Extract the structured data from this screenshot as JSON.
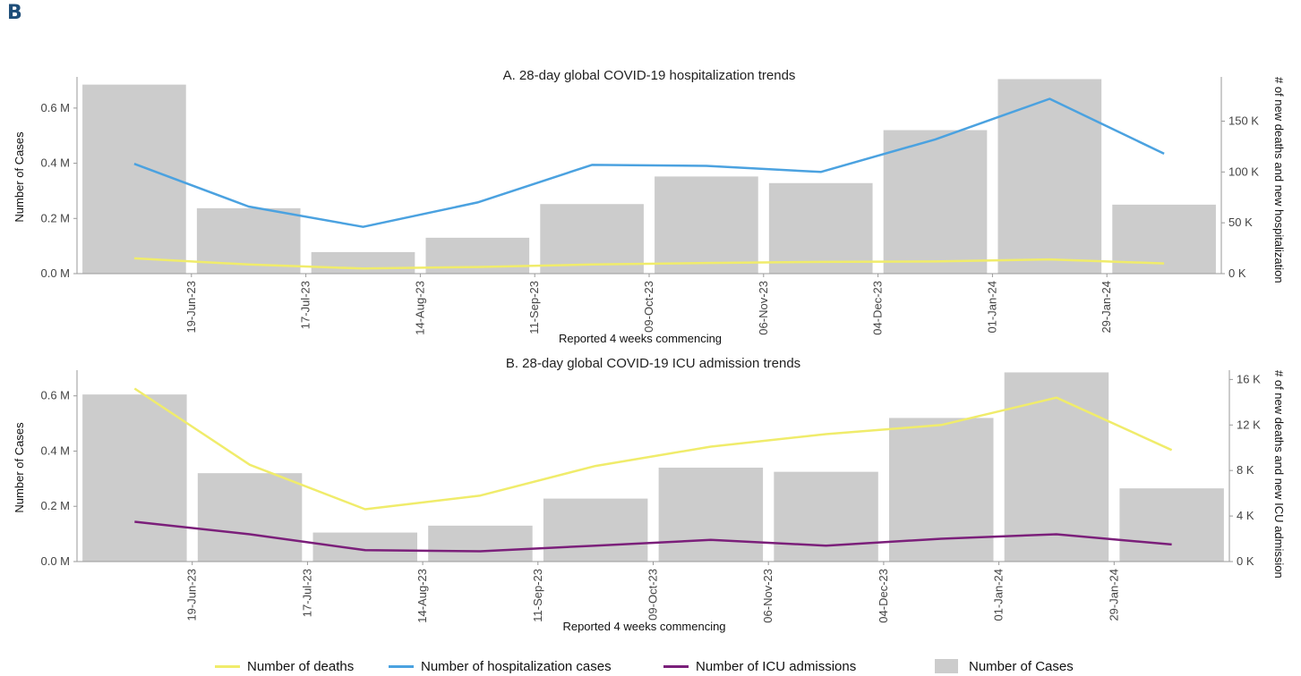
{
  "figure_label": "B",
  "colors": {
    "deaths": "#f0ec6b",
    "hospitalization": "#4ba2e0",
    "icu": "#7b1f7a",
    "cases": "#cccccc"
  },
  "legend": [
    {
      "label": "Number of deaths",
      "kind": "line",
      "color_key": "deaths"
    },
    {
      "label": "Number of hospitalization cases",
      "kind": "line",
      "color_key": "hospitalization"
    },
    {
      "label": "Number of ICU admissions",
      "kind": "line",
      "color_key": "icu"
    },
    {
      "label": "Number of Cases",
      "kind": "box",
      "color_key": "cases"
    }
  ],
  "chart_data": [
    {
      "type": "bar",
      "title": "A. 28-day global COVID-19 hospitalization trends",
      "xlabel": "Reported 4 weeks commencing",
      "ylabel": "Number of Cases",
      "y2label": "# of new deaths and new hospitalization",
      "x_ticks": [
        "19-Jun-23",
        "17-Jul-23",
        "14-Aug-23",
        "11-Sep-23",
        "09-Oct-23",
        "06-Nov-23",
        "04-Dec-23",
        "01-Jan-24",
        "29-Jan-24"
      ],
      "y_ticks": [
        "0.0 M",
        "0.2 M",
        "0.4 M",
        "0.6 M"
      ],
      "y2_ticks": [
        "0 K",
        "50 K",
        "100 K",
        "150 K"
      ],
      "ylim": [
        0,
        0.7
      ],
      "y2lim": [
        0,
        190
      ],
      "bars": {
        "name": "Number of Cases",
        "values": [
          0.685,
          0.237,
          0.078,
          0.13,
          0.252,
          0.352,
          0.328,
          0.52,
          0.705,
          0.25
        ]
      },
      "series": [
        {
          "name": "Number of hospitalization cases",
          "color_key": "hospitalization",
          "values": [
            108,
            66,
            46,
            70,
            107,
            106,
            100,
            132,
            172,
            118
          ]
        },
        {
          "name": "Number of deaths",
          "color_key": "deaths",
          "values": [
            15,
            9,
            5,
            6.5,
            9,
            10.5,
            11.5,
            12,
            14,
            10
          ]
        }
      ]
    },
    {
      "type": "bar",
      "title": "B. 28-day global COVID-19 ICU admission trends",
      "xlabel": "Reported 4 weeks commencing",
      "ylabel": "Number of Cases",
      "y2label": "# of new deaths and new ICU admission",
      "x_ticks": [
        "19-Jun-23",
        "17-Jul-23",
        "14-Aug-23",
        "11-Sep-23",
        "09-Oct-23",
        "06-Nov-23",
        "04-Dec-23",
        "01-Jan-24",
        "29-Jan-24"
      ],
      "y_ticks": [
        "0.0 M",
        "0.2 M",
        "0.4 M",
        "0.6 M"
      ],
      "y2_ticks": [
        "0 K",
        "4 K",
        "8 K",
        "12 K",
        "16 K"
      ],
      "ylim": [
        0,
        0.68
      ],
      "y2lim": [
        0,
        16.5
      ],
      "bars": {
        "name": "Number of Cases",
        "values": [
          0.605,
          0.32,
          0.105,
          0.13,
          0.228,
          0.34,
          0.325,
          0.52,
          0.685,
          0.265
        ]
      },
      "series": [
        {
          "name": "Number of deaths",
          "color_key": "deaths",
          "values": [
            15.2,
            8.5,
            4.6,
            5.8,
            8.4,
            10.1,
            11.2,
            12,
            14.4,
            9.8
          ]
        },
        {
          "name": "Number of ICU admissions",
          "color_key": "icu",
          "values": [
            3.5,
            2.4,
            1.0,
            0.9,
            1.4,
            1.9,
            1.4,
            2.0,
            2.4,
            1.5
          ]
        }
      ]
    }
  ]
}
